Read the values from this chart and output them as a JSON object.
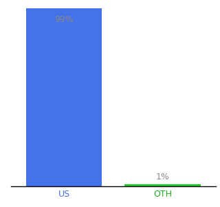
{
  "categories": [
    "US",
    "OTH"
  ],
  "values": [
    99,
    1
  ],
  "bar_colors": [
    "#4472e8",
    "#22cc22"
  ],
  "label_color": "#888888",
  "label_fontsize": 9,
  "tick_fontsize": 9,
  "tick_color": "#4472e8",
  "oth_tick_color": "#22aa22",
  "background_color": "#ffffff",
  "ylim": [
    0,
    100
  ],
  "bar_width": 0.5
}
